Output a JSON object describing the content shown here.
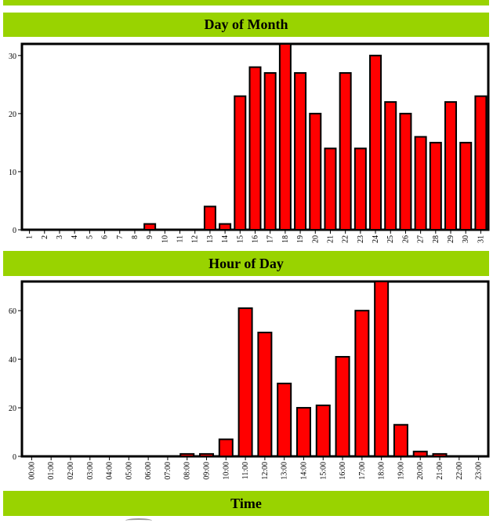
{
  "headers": {
    "day_of_month": "Day of Month",
    "hour_of_day": "Hour of Day",
    "time": "Time"
  },
  "colors": {
    "header_bg": "#99d300",
    "bar_fill": "#ff0000",
    "bar_stroke": "#000000"
  },
  "chart_data": [
    {
      "type": "bar",
      "title": "Day of Month",
      "categories": [
        "1",
        "2",
        "3",
        "4",
        "5",
        "6",
        "7",
        "8",
        "9",
        "10",
        "11",
        "12",
        "13",
        "14",
        "15",
        "16",
        "17",
        "18",
        "19",
        "20",
        "21",
        "22",
        "23",
        "24",
        "25",
        "26",
        "27",
        "28",
        "29",
        "30",
        "31"
      ],
      "values": [
        0,
        0,
        0,
        0,
        0,
        0,
        0,
        0,
        1,
        0,
        0,
        0,
        4,
        1,
        23,
        28,
        27,
        32,
        27,
        20,
        14,
        27,
        14,
        30,
        22,
        20,
        16,
        15,
        22,
        15,
        23
      ],
      "ylim": [
        0,
        32
      ],
      "yticks": [
        0,
        10,
        20,
        30
      ],
      "grid": false
    },
    {
      "type": "bar",
      "title": "Hour of Day",
      "categories": [
        "00:00",
        "01:00",
        "02:00",
        "03:00",
        "04:00",
        "05:00",
        "06:00",
        "07:00",
        "08:00",
        "09:00",
        "10:00",
        "11:00",
        "12:00",
        "13:00",
        "14:00",
        "15:00",
        "16:00",
        "17:00",
        "18:00",
        "19:00",
        "20:00",
        "21:00",
        "22:00",
        "23:00"
      ],
      "values": [
        0,
        0,
        0,
        0,
        0,
        0,
        0,
        0,
        1,
        1,
        7,
        61,
        51,
        30,
        20,
        21,
        41,
        60,
        72,
        13,
        2,
        1,
        0,
        0
      ],
      "ylim": [
        0,
        72
      ],
      "yticks": [
        0,
        20,
        40,
        60
      ],
      "grid": false
    }
  ]
}
